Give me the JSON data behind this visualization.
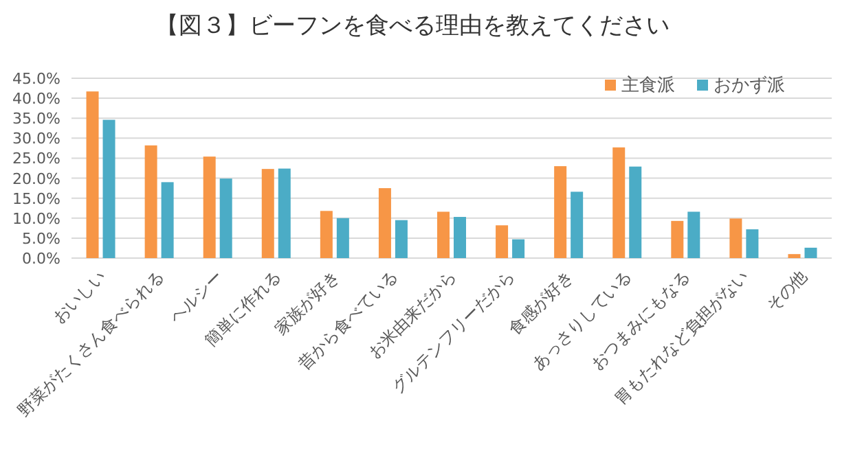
{
  "chart_data": {
    "type": "bar",
    "title": "【図３】ビーフンを食べる理由を教えてください",
    "categories": [
      "おいしい",
      "野菜がたくさん食べられる",
      "ヘルシー",
      "簡単に作れる",
      "家族が好き",
      "昔から食べている",
      "お米由来だから",
      "グルテンフリーだから",
      "食感が好き",
      "あっさりしている",
      "おつまみにもなる",
      "胃もたれなど負担がない",
      "その他"
    ],
    "series": [
      {
        "name": "主食派",
        "color": "#f79646",
        "values": [
          41.7,
          28.2,
          25.4,
          22.3,
          11.8,
          17.5,
          11.6,
          8.2,
          23.0,
          27.7,
          9.3,
          9.9,
          1.0
        ]
      },
      {
        "name": "おかず派",
        "color": "#4bacc6",
        "values": [
          34.6,
          19.0,
          19.9,
          22.4,
          10.0,
          9.5,
          10.3,
          4.7,
          16.6,
          22.9,
          11.6,
          7.2,
          2.6
        ]
      }
    ],
    "ylim": [
      0,
      45
    ],
    "yticks": [
      {
        "value": 0,
        "label": "0.0%"
      },
      {
        "value": 5,
        "label": "5.0%"
      },
      {
        "value": 10,
        "label": "10.0%"
      },
      {
        "value": 15,
        "label": "15.0%"
      },
      {
        "value": 20,
        "label": "20.0%"
      },
      {
        "value": 25,
        "label": "25.0%"
      },
      {
        "value": 30,
        "label": "30.0%"
      },
      {
        "value": 35,
        "label": "35.0%"
      },
      {
        "value": 40,
        "label": "40.0%"
      },
      {
        "value": 45,
        "label": "45.0%"
      }
    ],
    "grid": "y",
    "legend": "top right"
  }
}
